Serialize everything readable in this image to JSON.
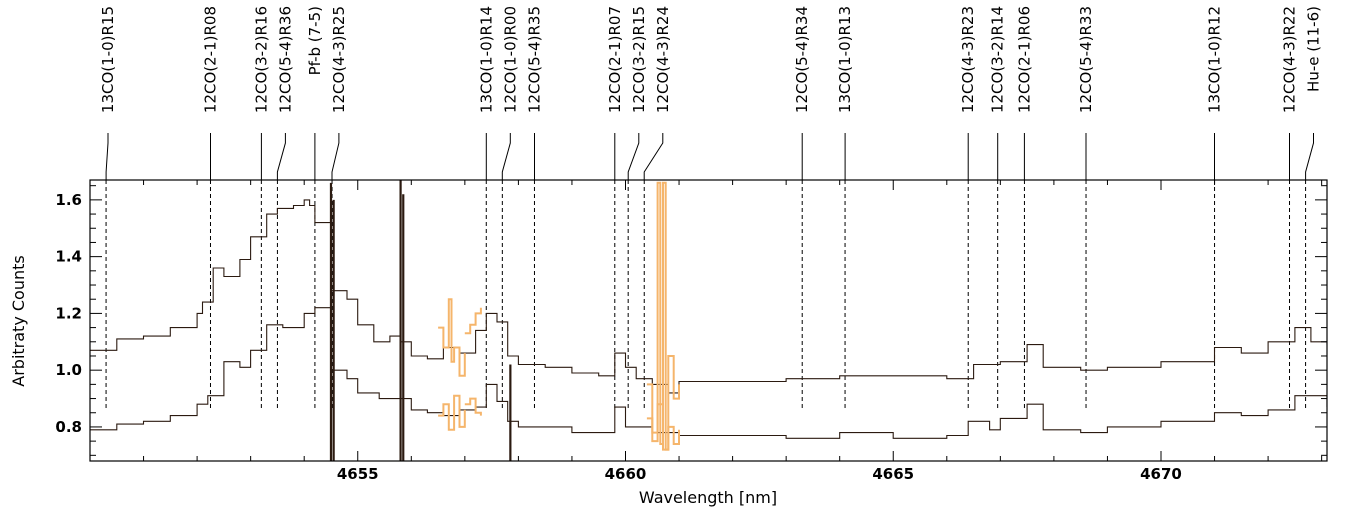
{
  "chart_data": {
    "type": "line",
    "title": "",
    "xlabel": "Wavelength [nm]",
    "ylabel": "Arbitraty Counts",
    "xlim": [
      4650.0,
      4673.1
    ],
    "ylim": [
      0.68,
      1.67
    ],
    "x_major_ticks": [
      4655,
      4660,
      4665,
      4670
    ],
    "y_major_ticks": [
      0.8,
      1.0,
      1.2,
      1.4,
      1.6
    ],
    "x_tick_labels": [
      "4655",
      "4660",
      "4665",
      "4670"
    ],
    "y_tick_labels": [
      "0.8",
      "1.0",
      "1.2",
      "1.4",
      "1.6"
    ],
    "grid": false,
    "colors": {
      "spectrum": "#2b1a10",
      "masked": "#f5b56b"
    },
    "series": [
      {
        "points": [
          [
            4650.0,
            1.07
          ],
          [
            4650.5,
            1.11
          ],
          [
            4651.0,
            1.12
          ],
          [
            4651.5,
            1.15
          ],
          [
            4652.0,
            1.2
          ],
          [
            4652.1,
            1.24
          ],
          [
            4652.3,
            1.36
          ],
          [
            4652.5,
            1.33
          ],
          [
            4652.8,
            1.39
          ],
          [
            4653.0,
            1.47
          ],
          [
            4653.3,
            1.55
          ],
          [
            4653.5,
            1.57
          ],
          [
            4653.8,
            1.58
          ],
          [
            4654.0,
            1.6
          ],
          [
            4654.1,
            1.58
          ],
          [
            4654.2,
            1.52
          ],
          [
            4654.5,
            1.28
          ],
          [
            4654.8,
            1.25
          ],
          [
            4655.0,
            1.16
          ],
          [
            4655.3,
            1.1
          ],
          [
            4655.6,
            1.12
          ],
          [
            4655.8,
            1.1
          ],
          [
            4656.0,
            1.05
          ],
          [
            4656.3,
            1.04
          ],
          [
            4656.6,
            1.08
          ],
          [
            4656.9,
            1.06
          ],
          [
            4657.2,
            1.14
          ],
          [
            4657.4,
            1.2
          ],
          [
            4657.6,
            1.17
          ],
          [
            4657.8,
            1.05
          ],
          [
            4658.0,
            1.02
          ],
          [
            4658.5,
            1.01
          ],
          [
            4659.0,
            0.99
          ],
          [
            4659.5,
            0.98
          ],
          [
            4659.8,
            1.06
          ],
          [
            4660.0,
            1.01
          ],
          [
            4660.2,
            0.97
          ],
          [
            4660.5,
            0.95
          ],
          [
            4660.8,
            0.92
          ],
          [
            4661.0,
            0.96
          ],
          [
            4662.0,
            0.96
          ],
          [
            4663.0,
            0.97
          ],
          [
            4664.0,
            0.98
          ],
          [
            4665.0,
            0.98
          ],
          [
            4666.0,
            0.97
          ],
          [
            4666.5,
            1.02
          ],
          [
            4667.0,
            1.03
          ],
          [
            4667.5,
            1.09
          ],
          [
            4667.8,
            1.01
          ],
          [
            4668.5,
            1.0
          ],
          [
            4669.0,
            1.01
          ],
          [
            4670.0,
            1.03
          ],
          [
            4671.0,
            1.08
          ],
          [
            4671.5,
            1.06
          ],
          [
            4672.0,
            1.1
          ],
          [
            4672.5,
            1.15
          ],
          [
            4672.8,
            1.1
          ],
          [
            4673.1,
            1.09
          ]
        ]
      },
      {
        "points": [
          [
            4650.0,
            0.79
          ],
          [
            4650.5,
            0.81
          ],
          [
            4651.0,
            0.82
          ],
          [
            4651.5,
            0.84
          ],
          [
            4652.0,
            0.88
          ],
          [
            4652.2,
            0.91
          ],
          [
            4652.5,
            1.03
          ],
          [
            4652.8,
            1.01
          ],
          [
            4653.0,
            1.07
          ],
          [
            4653.3,
            1.16
          ],
          [
            4653.6,
            1.15
          ],
          [
            4653.8,
            1.15
          ],
          [
            4654.0,
            1.2
          ],
          [
            4654.2,
            1.22
          ],
          [
            4654.5,
            1.0
          ],
          [
            4654.8,
            0.97
          ],
          [
            4655.0,
            0.92
          ],
          [
            4655.4,
            0.9
          ],
          [
            4655.8,
            0.9
          ],
          [
            4656.0,
            0.86
          ],
          [
            4656.3,
            0.85
          ],
          [
            4656.6,
            0.84
          ],
          [
            4656.9,
            0.86
          ],
          [
            4657.2,
            0.87
          ],
          [
            4657.4,
            0.95
          ],
          [
            4657.6,
            0.89
          ],
          [
            4657.8,
            0.82
          ],
          [
            4658.0,
            0.8
          ],
          [
            4659.0,
            0.78
          ],
          [
            4659.5,
            0.78
          ],
          [
            4659.8,
            0.87
          ],
          [
            4660.0,
            0.8
          ],
          [
            4660.5,
            0.78
          ],
          [
            4661.0,
            0.77
          ],
          [
            4662.0,
            0.77
          ],
          [
            4663.0,
            0.76
          ],
          [
            4664.0,
            0.78
          ],
          [
            4665.0,
            0.76
          ],
          [
            4666.0,
            0.77
          ],
          [
            4666.4,
            0.82
          ],
          [
            4666.8,
            0.79
          ],
          [
            4667.0,
            0.83
          ],
          [
            4667.5,
            0.88
          ],
          [
            4667.8,
            0.79
          ],
          [
            4668.5,
            0.78
          ],
          [
            4669.0,
            0.8
          ],
          [
            4670.0,
            0.82
          ],
          [
            4671.0,
            0.85
          ],
          [
            4671.5,
            0.84
          ],
          [
            4672.0,
            0.86
          ],
          [
            4672.5,
            0.91
          ],
          [
            4673.1,
            0.87
          ]
        ]
      }
    ],
    "masked_regions": [
      {
        "points": [
          [
            4656.5,
            1.15
          ],
          [
            4656.6,
            1.08
          ],
          [
            4656.7,
            1.25
          ],
          [
            4656.75,
            1.03
          ],
          [
            4656.8,
            1.08
          ],
          [
            4656.9,
            0.98
          ],
          [
            4657.0,
            1.06
          ]
        ]
      },
      {
        "points": [
          [
            4656.5,
            0.84
          ],
          [
            4656.6,
            0.88
          ],
          [
            4656.7,
            0.79
          ],
          [
            4656.8,
            0.91
          ],
          [
            4656.9,
            0.8
          ],
          [
            4657.0,
            0.86
          ]
        ]
      },
      {
        "points": [
          [
            4657.0,
            1.13
          ],
          [
            4657.1,
            1.16
          ],
          [
            4657.2,
            1.2
          ],
          [
            4657.3,
            1.22
          ]
        ]
      },
      {
        "points": [
          [
            4657.0,
            0.88
          ],
          [
            4657.1,
            0.9
          ],
          [
            4657.2,
            0.85
          ],
          [
            4657.3,
            0.84
          ]
        ]
      },
      {
        "points": [
          [
            4660.4,
            0.95
          ],
          [
            4660.5,
            0.78
          ],
          [
            4660.6,
            1.66
          ],
          [
            4660.65,
            0.74
          ],
          [
            4660.7,
            1.66
          ],
          [
            4660.75,
            0.72
          ],
          [
            4660.8,
            1.05
          ],
          [
            4660.9,
            0.9
          ],
          [
            4661.0,
            0.95
          ]
        ]
      },
      {
        "points": [
          [
            4660.4,
            0.83
          ],
          [
            4660.5,
            0.75
          ],
          [
            4660.6,
            0.88
          ],
          [
            4660.7,
            0.72
          ],
          [
            4660.8,
            0.8
          ],
          [
            4660.9,
            0.74
          ],
          [
            4661.0,
            0.79
          ]
        ]
      }
    ],
    "artifacts": [
      {
        "x": 4654.5,
        "y_from": 0.68,
        "y_to": 1.66
      },
      {
        "x": 4654.55,
        "y_from": 0.68,
        "y_to": 1.6
      },
      {
        "x": 4655.8,
        "y_from": 0.68,
        "y_to": 1.67
      },
      {
        "x": 4655.85,
        "y_from": 0.68,
        "y_to": 1.62
      },
      {
        "x": 4657.85,
        "y_from": 0.68,
        "y_to": 1.02
      }
    ],
    "line_ids": [
      {
        "label": "13CO(1-0)R15",
        "x": 4650.3
      },
      {
        "label": "12CO(2-1)R08",
        "x": 4652.25
      },
      {
        "label": "12CO(3-2)R16",
        "x": 4653.2
      },
      {
        "label": "12CO(5-4)R36",
        "x": 4653.5
      },
      {
        "label": "Pf-b  (7-5)",
        "x": 4654.2
      },
      {
        "label": "12CO(4-3)R25",
        "x": 4654.52
      },
      {
        "label": "13CO(1-0)R14",
        "x": 4657.4
      },
      {
        "label": "12CO(1-0)R00",
        "x": 4657.7
      },
      {
        "label": "12CO(5-4)R35",
        "x": 4658.3
      },
      {
        "label": "12CO(2-1)R07",
        "x": 4659.8
      },
      {
        "label": "12CO(3-2)R15",
        "x": 4660.05
      },
      {
        "label": "12CO(4-3)R24",
        "x": 4660.35
      },
      {
        "label": "12CO(5-4)R34",
        "x": 4663.3
      },
      {
        "label": "13CO(1-0)R13",
        "x": 4664.1
      },
      {
        "label": "12CO(4-3)R23",
        "x": 4666.4
      },
      {
        "label": "12CO(3-2)R14",
        "x": 4666.95
      },
      {
        "label": "12CO(2-1)R06",
        "x": 4667.45
      },
      {
        "label": "12CO(5-4)R33",
        "x": 4668.6
      },
      {
        "label": "13CO(1-0)R12",
        "x": 4671.0
      },
      {
        "label": "12CO(4-3)R22",
        "x": 4672.4
      },
      {
        "label": "Hu-e (11-6)",
        "x": 4672.7
      }
    ]
  }
}
